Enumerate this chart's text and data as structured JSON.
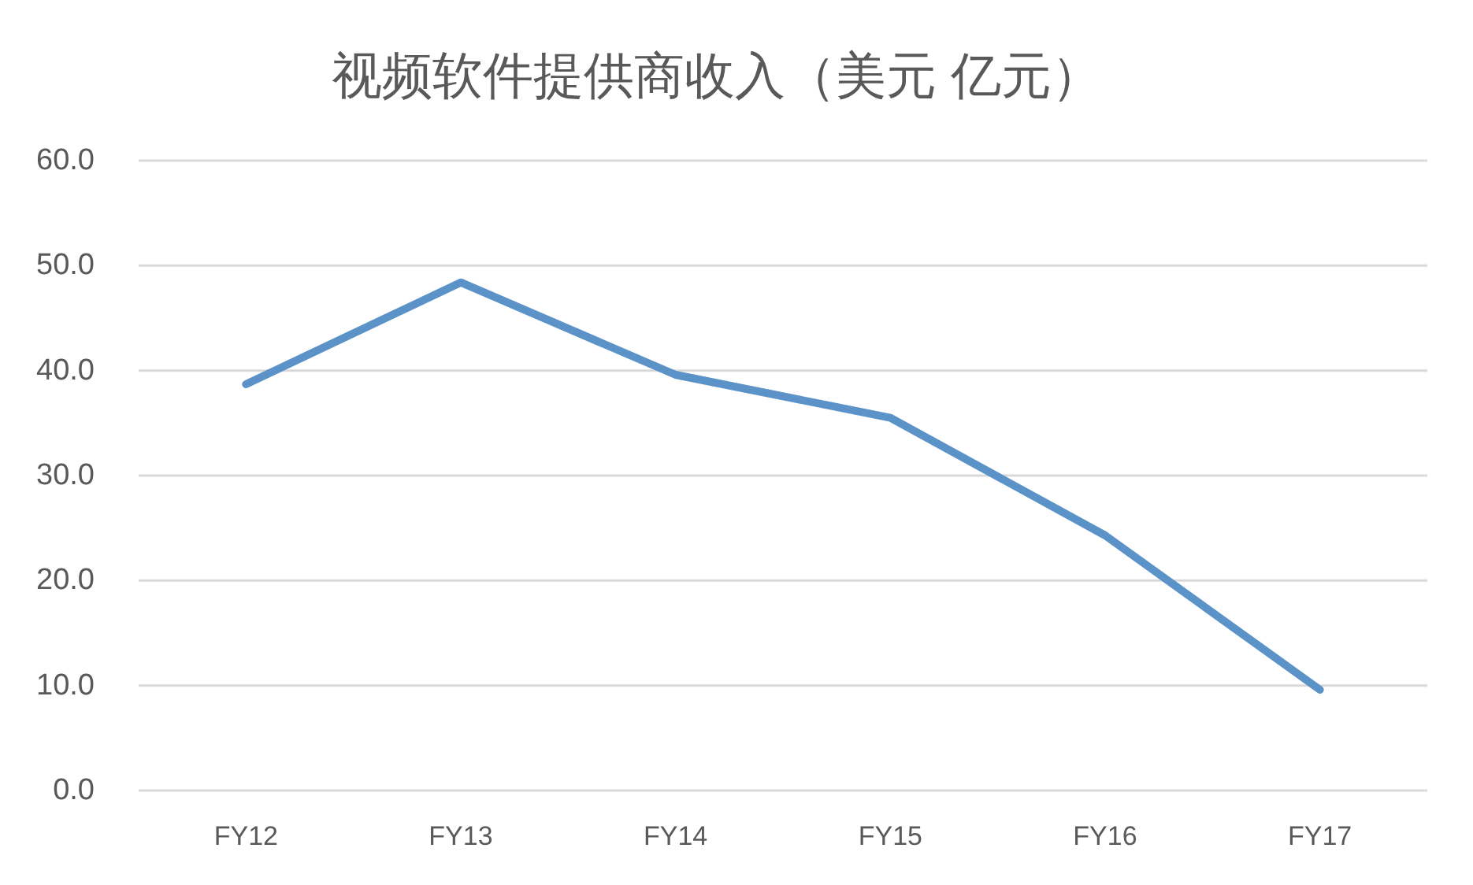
{
  "chart_data": {
    "type": "line",
    "title": "视频软件提供商收入（美元 亿元）",
    "categories": [
      "FY12",
      "FY13",
      "FY14",
      "FY15",
      "FY16",
      "FY17"
    ],
    "values": [
      38.7,
      48.4,
      39.6,
      35.5,
      24.3,
      9.6
    ],
    "color": "#5b93c8",
    "ylim": [
      0,
      60
    ],
    "yticks": [
      {
        "value": 0,
        "label": "0.0"
      },
      {
        "value": 10,
        "label": "10.0"
      },
      {
        "value": 20,
        "label": "20.0"
      },
      {
        "value": 30,
        "label": "30.0"
      },
      {
        "value": 40,
        "label": "40.0"
      },
      {
        "value": 50,
        "label": "50.0"
      },
      {
        "value": 60,
        "label": "60.0"
      }
    ],
    "grid": "y"
  }
}
